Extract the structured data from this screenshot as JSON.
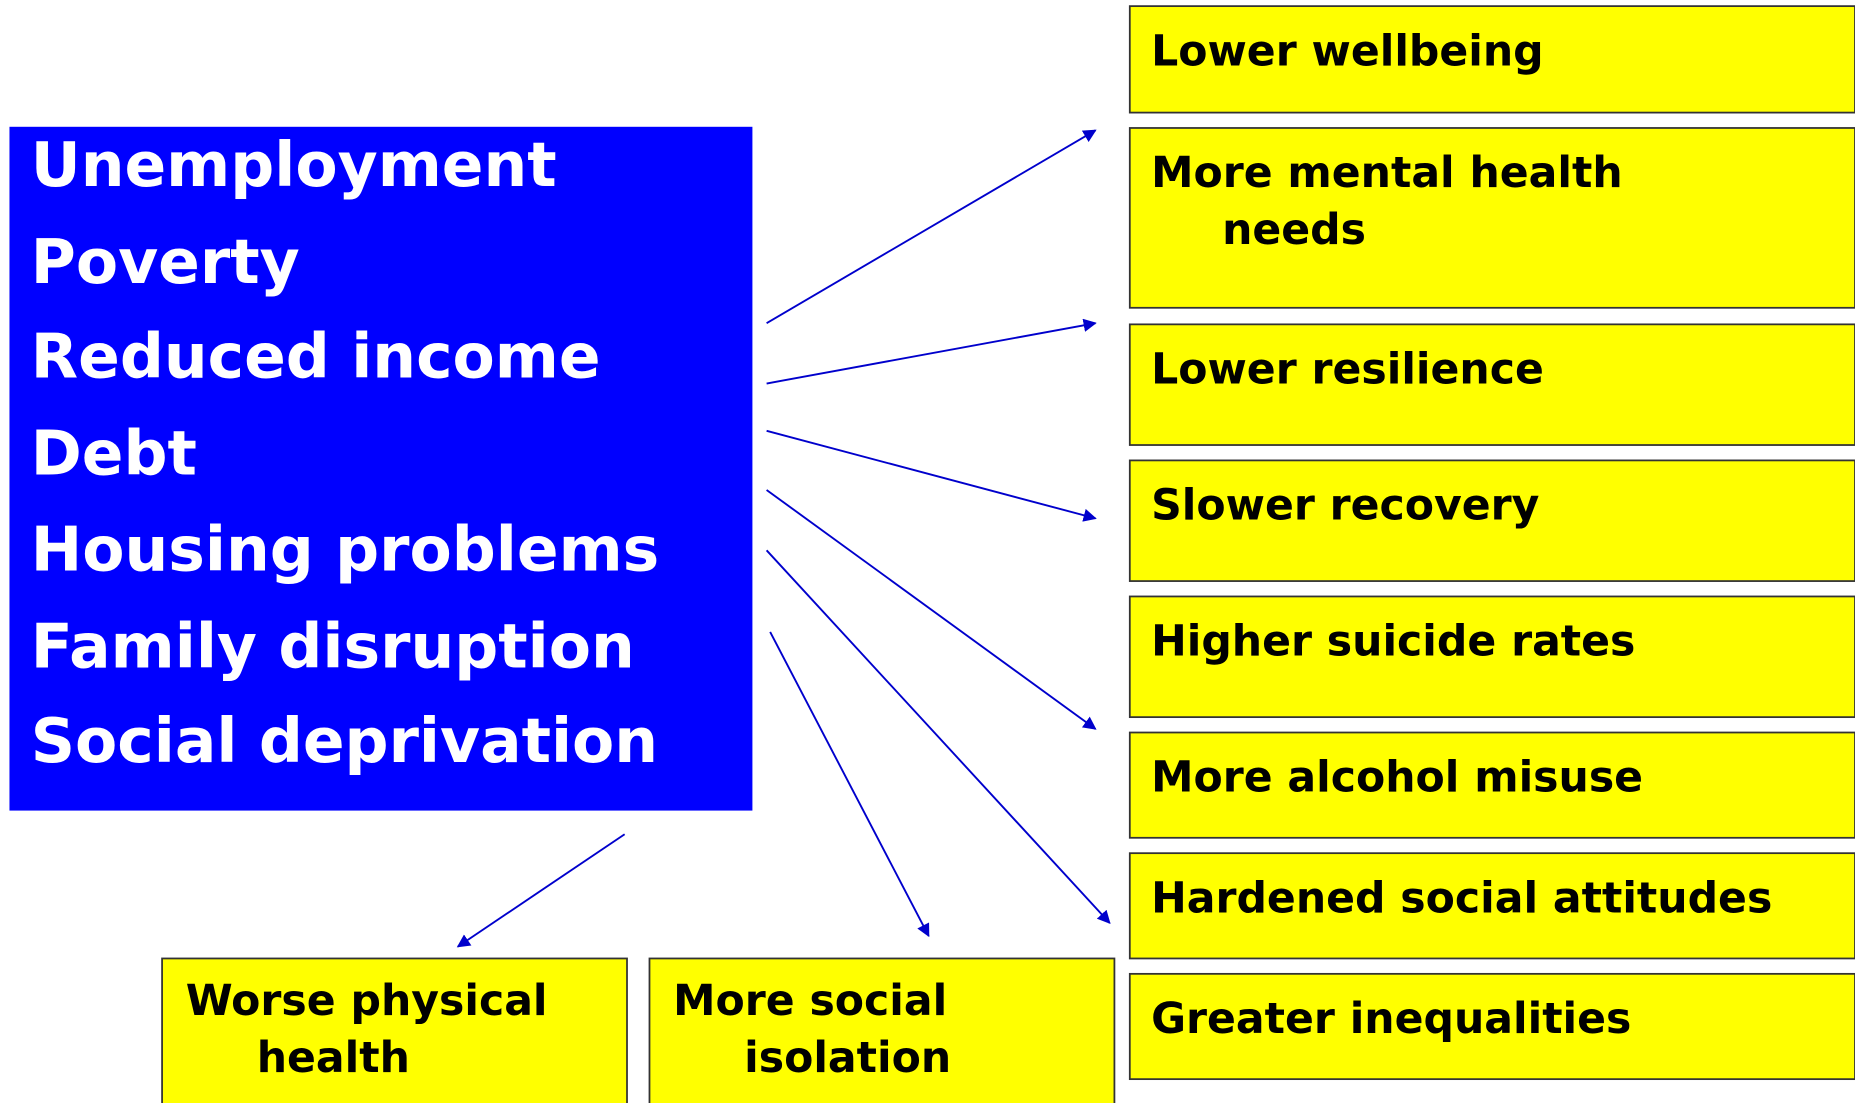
{
  "causes": [
    "Unemployment",
    "Poverty",
    "Reduced income",
    "Debt",
    "Housing problems",
    "Family disruption",
    "Social deprivation"
  ],
  "outcomes": [
    {
      "lines": [
        "Lower wellbeing"
      ]
    },
    {
      "lines": [
        "More mental health",
        "needs"
      ]
    },
    {
      "lines": [
        "Lower resilience"
      ]
    },
    {
      "lines": [
        "Slower recovery"
      ]
    },
    {
      "lines": [
        "Higher suicide rates"
      ]
    },
    {
      "lines": [
        "More alcohol misuse"
      ]
    },
    {
      "lines": [
        "Hardened social attitudes"
      ]
    },
    {
      "lines": [
        "Greater inequalities"
      ]
    }
  ],
  "bottom_outcomes": [
    {
      "lines": [
        "Worse physical",
        "health"
      ]
    },
    {
      "lines": [
        "More social",
        "isolation"
      ]
    }
  ]
}
